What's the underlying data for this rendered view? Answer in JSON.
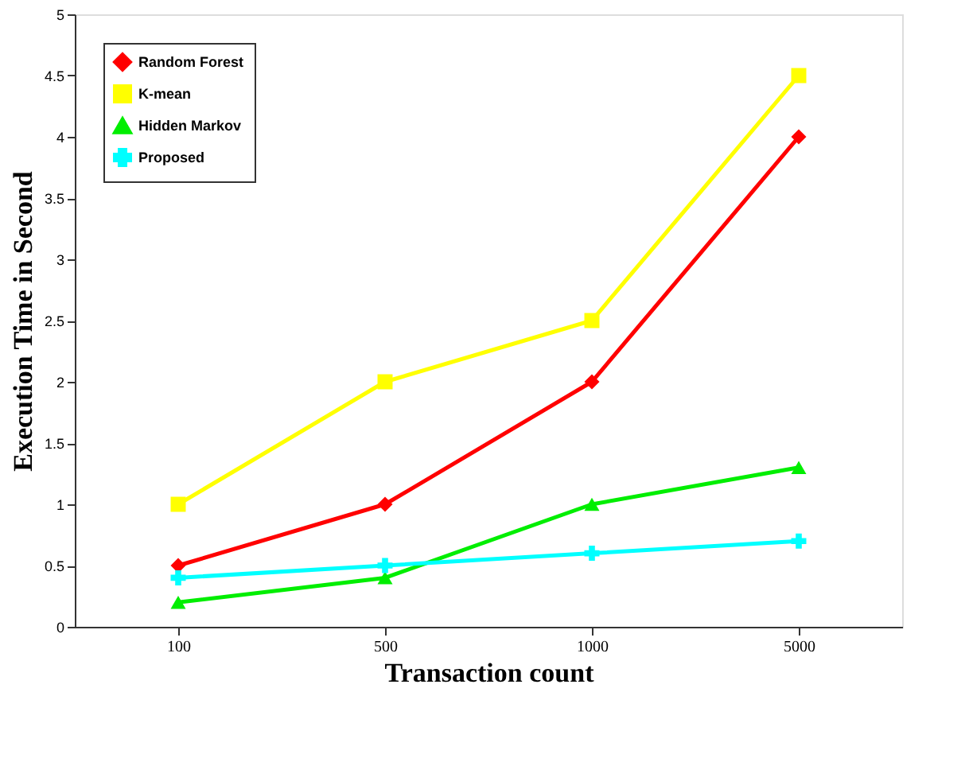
{
  "chart_data": {
    "type": "line",
    "xlabel": "Transaction count",
    "ylabel": "Execution Time in Second",
    "categories": [
      "100",
      "500",
      "1000",
      "5000"
    ],
    "series": [
      {
        "name": "Random Forest",
        "color": "#ff0000",
        "marker": "diamond",
        "values": [
          0.5,
          1,
          2,
          4
        ]
      },
      {
        "name": "K-mean",
        "color": "#ffff00",
        "marker": "square",
        "values": [
          1,
          2,
          2.5,
          4.5
        ]
      },
      {
        "name": "Hidden Markov",
        "color": "#00ee00",
        "marker": "triangle",
        "values": [
          0.2,
          0.4,
          1,
          1.3
        ]
      },
      {
        "name": "Proposed",
        "color": "#00ffff",
        "marker": "cross",
        "values": [
          0.4,
          0.5,
          0.6,
          0.7
        ]
      }
    ],
    "ylim": [
      0,
      5
    ],
    "yticks": [
      0,
      0.5,
      1,
      1.5,
      2,
      2.5,
      3,
      3.5,
      4,
      4.5,
      5
    ],
    "grid": false,
    "legend": "top left",
    "line_style": "solid"
  }
}
